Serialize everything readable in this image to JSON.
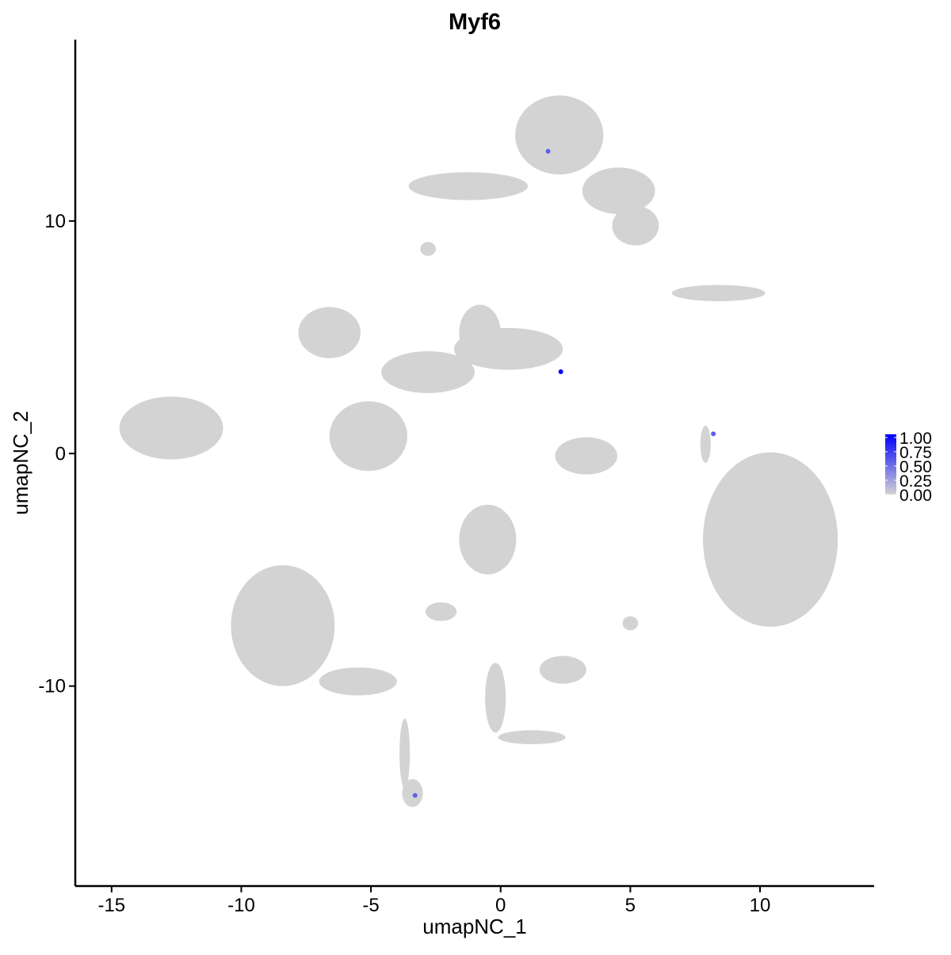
{
  "chart_data": {
    "type": "scatter",
    "title": "Myf6",
    "xlabel": "umapNC_1",
    "ylabel": "umapNC_2",
    "xlim": [
      -16.4,
      14.4
    ],
    "ylim": [
      -18.6,
      17.8
    ],
    "xticks": [
      -15,
      -10,
      -5,
      0,
      5,
      10
    ],
    "yticks": [
      -10,
      0,
      10
    ],
    "grid": false,
    "colors": {
      "low": "#d3d3d3",
      "high": "#0000ff"
    },
    "legend": {
      "placement": "right",
      "ticks": [
        "1.00",
        "0.75",
        "0.50",
        "0.25",
        "0.00"
      ],
      "range": [
        0,
        1
      ]
    },
    "clusters": [
      {
        "x": -12.7,
        "y": 1.1,
        "rx": 2.0,
        "ry": 1.35
      },
      {
        "x": 2.26,
        "y": 13.7,
        "rx": 1.7,
        "ry": 1.7
      },
      {
        "x": -1.25,
        "y": 11.5,
        "rx": 2.3,
        "ry": 0.6
      },
      {
        "x": 4.55,
        "y": 11.3,
        "rx": 1.4,
        "ry": 1.0
      },
      {
        "x": 5.2,
        "y": 9.8,
        "rx": 0.9,
        "ry": 0.85
      },
      {
        "x": -6.6,
        "y": 5.2,
        "rx": 1.2,
        "ry": 1.1
      },
      {
        "x": -5.1,
        "y": 0.75,
        "rx": 1.5,
        "ry": 1.5
      },
      {
        "x": -2.8,
        "y": 3.5,
        "rx": 1.8,
        "ry": 0.9
      },
      {
        "x": 0.3,
        "y": 4.5,
        "rx": 2.1,
        "ry": 0.9
      },
      {
        "x": -0.8,
        "y": 5.2,
        "rx": 0.8,
        "ry": 1.2
      },
      {
        "x": 10.4,
        "y": -3.7,
        "rx": 2.6,
        "ry": 3.75
      },
      {
        "x": -8.4,
        "y": -7.4,
        "rx": 2.0,
        "ry": 2.6
      },
      {
        "x": -5.5,
        "y": -9.8,
        "rx": 1.5,
        "ry": 0.6
      },
      {
        "x": -3.7,
        "y": -12.9,
        "rx": 0.2,
        "ry": 1.5
      },
      {
        "x": -3.4,
        "y": -14.6,
        "rx": 0.4,
        "ry": 0.6
      },
      {
        "x": -0.5,
        "y": -3.7,
        "rx": 1.1,
        "ry": 1.5
      },
      {
        "x": -2.3,
        "y": -6.8,
        "rx": 0.6,
        "ry": 0.4
      },
      {
        "x": 3.3,
        "y": -0.1,
        "rx": 1.2,
        "ry": 0.8
      },
      {
        "x": 8.4,
        "y": 6.9,
        "rx": 1.8,
        "ry": 0.35
      },
      {
        "x": 2.4,
        "y": -9.3,
        "rx": 0.9,
        "ry": 0.6
      },
      {
        "x": -0.2,
        "y": -10.5,
        "rx": 0.4,
        "ry": 1.5
      },
      {
        "x": 1.2,
        "y": -12.2,
        "rx": 1.3,
        "ry": 0.3
      },
      {
        "x": 5.0,
        "y": -7.3,
        "rx": 0.3,
        "ry": 0.3
      },
      {
        "x": 7.9,
        "y": 0.4,
        "rx": 0.2,
        "ry": 0.8
      },
      {
        "x": -2.8,
        "y": 8.8,
        "rx": 0.3,
        "ry": 0.3
      }
    ],
    "expressing_points": [
      {
        "x": 1.83,
        "y": 13.0,
        "value": 0.55
      },
      {
        "x": 2.32,
        "y": 3.52,
        "value": 1.0
      },
      {
        "x": 8.2,
        "y": 0.85,
        "value": 0.55
      },
      {
        "x": -3.3,
        "y": -14.7,
        "value": 0.55
      }
    ]
  }
}
